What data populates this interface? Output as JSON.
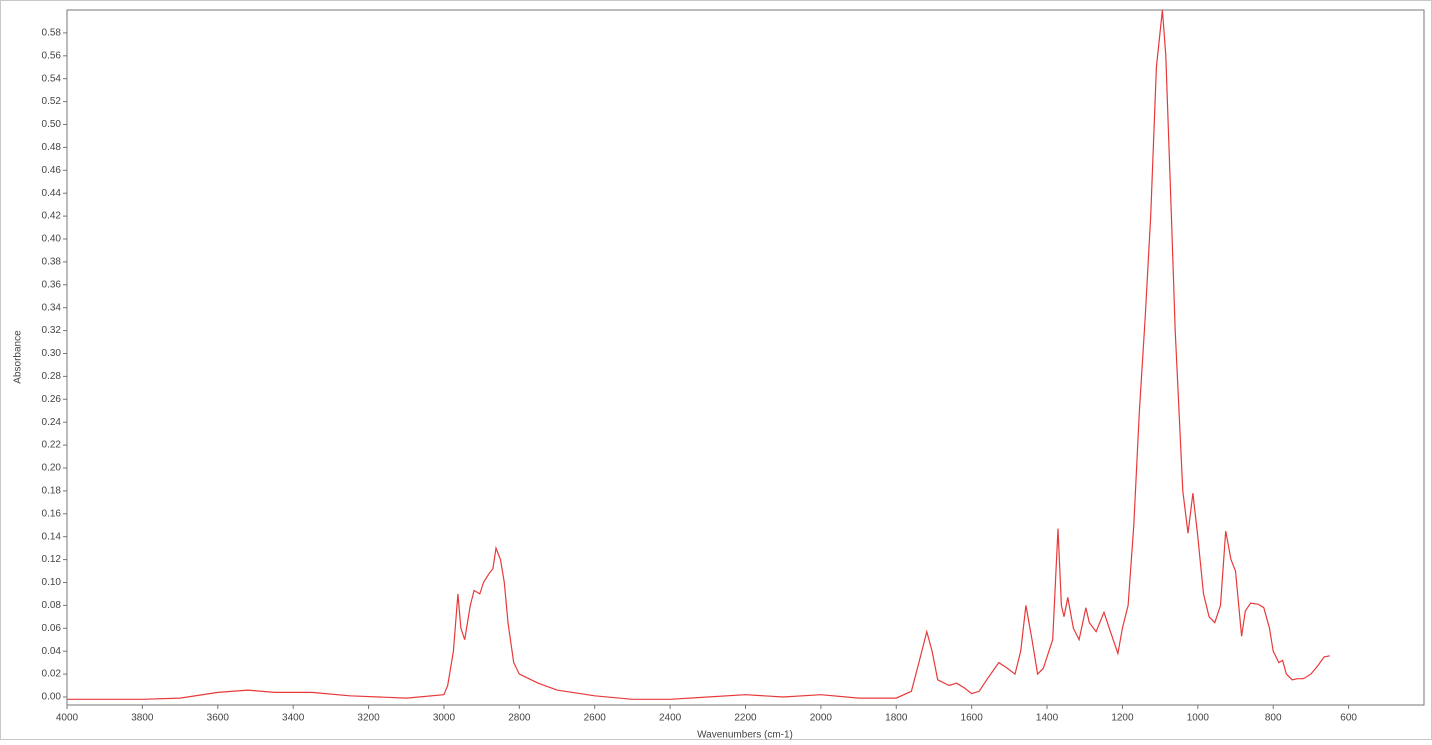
{
  "chart_data": {
    "type": "line",
    "xlabel": "Wavenumbers (cm-1)",
    "ylabel": "Absorbance",
    "xlim": [
      4000,
      400
    ],
    "xticks": [
      4000,
      3800,
      3600,
      3400,
      3200,
      3000,
      2800,
      2600,
      2400,
      2200,
      2000,
      1800,
      1600,
      1400,
      1200,
      1000,
      800,
      600
    ],
    "ylim": [
      -0.007,
      0.6
    ],
    "yticks": [
      {
        "value": 0,
        "label": "0.00"
      },
      0.02,
      0.04,
      0.06,
      0.08,
      {
        "value": 0.1,
        "label": "0.10"
      },
      0.12,
      0.14,
      0.16,
      0.18,
      {
        "value": 0.2,
        "label": "0.20"
      },
      0.22,
      0.24,
      0.26,
      0.28,
      {
        "value": 0.3,
        "label": "0.30"
      },
      0.32,
      0.34,
      0.36,
      0.38,
      {
        "value": 0.4,
        "label": "0.40"
      },
      0.42,
      0.44,
      0.46,
      0.48,
      {
        "value": 0.5,
        "label": "0.50"
      },
      0.52,
      0.54,
      0.56,
      0.58
    ],
    "color": "#e8393a",
    "grid": false,
    "x": [
      4000,
      3800,
      3700,
      3600,
      3520,
      3450,
      3350,
      3250,
      3100,
      3000,
      2990,
      2975,
      2963,
      2955,
      2945,
      2930,
      2920,
      2905,
      2895,
      2880,
      2870,
      2862,
      2850,
      2840,
      2830,
      2815,
      2800,
      2750,
      2700,
      2600,
      2500,
      2400,
      2300,
      2200,
      2100,
      2000,
      1900,
      1800,
      1760,
      1740,
      1719,
      1705,
      1690,
      1660,
      1640,
      1620,
      1600,
      1580,
      1560,
      1528,
      1505,
      1485,
      1470,
      1456,
      1440,
      1425,
      1410,
      1395,
      1385,
      1371,
      1362,
      1355,
      1345,
      1330,
      1315,
      1297,
      1288,
      1270,
      1249,
      1235,
      1212,
      1200,
      1185,
      1170,
      1155,
      1140,
      1125,
      1110,
      1094,
      1085,
      1070,
      1060,
      1050,
      1040,
      1026,
      1013,
      1000,
      985,
      970,
      955,
      940,
      926,
      912,
      900,
      884,
      874,
      860,
      840,
      825,
      810,
      800,
      785,
      775,
      765,
      750,
      735,
      720,
      700,
      680,
      665,
      650
    ],
    "y": [
      -0.002,
      -0.002,
      -0.001,
      0.004,
      0.006,
      0.004,
      0.004,
      0.001,
      -0.001,
      0.002,
      0.01,
      0.04,
      0.09,
      0.06,
      0.05,
      0.08,
      0.093,
      0.09,
      0.1,
      0.108,
      0.112,
      0.13,
      0.12,
      0.1,
      0.065,
      0.03,
      0.02,
      0.012,
      0.006,
      0.001,
      -0.002,
      -0.002,
      0,
      0.002,
      0,
      0.002,
      -0.001,
      -0.001,
      0.005,
      0.03,
      0.057,
      0.04,
      0.015,
      0.01,
      0.012,
      0.008,
      0.003,
      0.005,
      0.015,
      0.03,
      0.025,
      0.02,
      0.04,
      0.08,
      0.05,
      0.02,
      0.025,
      0.04,
      0.05,
      0.147,
      0.08,
      0.07,
      0.087,
      0.06,
      0.05,
      0.078,
      0.065,
      0.057,
      0.074,
      0.06,
      0.038,
      0.06,
      0.08,
      0.15,
      0.25,
      0.33,
      0.42,
      0.55,
      0.6,
      0.56,
      0.42,
      0.32,
      0.25,
      0.18,
      0.143,
      0.178,
      0.14,
      0.09,
      0.07,
      0.065,
      0.08,
      0.145,
      0.12,
      0.11,
      0.053,
      0.075,
      0.082,
      0.081,
      0.078,
      0.06,
      0.04,
      0.03,
      0.032,
      0.02,
      0.015,
      0.016,
      0.016,
      0.02,
      0.028,
      0.035,
      0.036
    ]
  }
}
